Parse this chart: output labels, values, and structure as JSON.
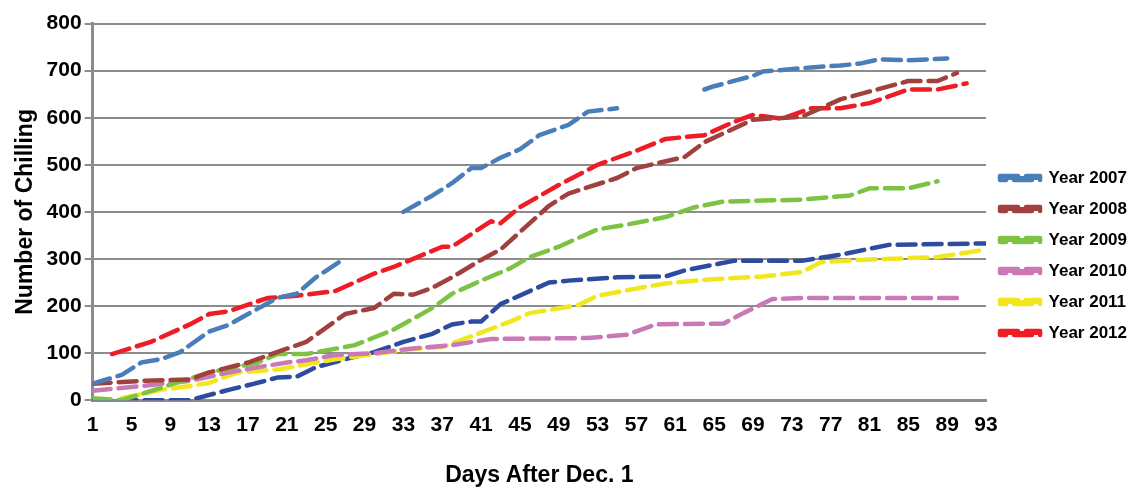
{
  "chart_data": {
    "type": "line",
    "xlabel": "Days After Dec. 1",
    "ylabel": "Number of Chilling",
    "xlim": [
      1,
      93
    ],
    "xticks": [
      1,
      5,
      9,
      13,
      17,
      21,
      25,
      29,
      33,
      37,
      41,
      45,
      49,
      53,
      57,
      61,
      65,
      69,
      73,
      77,
      81,
      85,
      89,
      93
    ],
    "ylim": [
      0,
      800
    ],
    "yticks": [
      0,
      100,
      200,
      300,
      400,
      500,
      600,
      700,
      800
    ],
    "grid": "y",
    "legend": "right",
    "line_style": "dashed",
    "marker": "none",
    "series": [
      {
        "name": "Year 2007",
        "color": "#4a7ebb",
        "x": [
          1,
          4,
          6,
          8,
          10,
          13,
          15,
          17,
          20,
          22,
          24,
          27,
          28,
          33,
          36,
          38,
          40,
          41,
          43,
          45,
          47,
          50,
          52,
          55,
          56,
          64,
          65,
          69,
          70,
          75,
          78,
          80,
          82,
          85,
          89
        ],
        "values": [
          35,
          54,
          80,
          87,
          102,
          146,
          160,
          183,
          217,
          226,
          261,
          302,
          null,
          400,
          435,
          461,
          493,
          493,
          515,
          533,
          563,
          585,
          613,
          620,
          null,
          660,
          667,
          689,
          698,
          707,
          711,
          715,
          724,
          722,
          726
        ]
      },
      {
        "name": "Year 2008",
        "color": "#a0413e",
        "x": [
          1,
          6,
          11,
          13,
          17,
          23,
          27,
          30,
          32,
          34,
          36,
          38,
          41,
          43,
          48,
          50,
          55,
          57,
          62,
          64,
          69,
          74,
          78,
          85,
          88,
          90
        ],
        "values": [
          35,
          41,
          44,
          59,
          80,
          124,
          183,
          196,
          226,
          224,
          239,
          261,
          298,
          320,
          413,
          439,
          472,
          493,
          517,
          548,
          596,
          602,
          639,
          678,
          678,
          695
        ]
      },
      {
        "name": "Year 2009",
        "color": "#7dc243",
        "x": [
          1,
          4,
          13,
          18,
          20,
          23,
          28,
          32,
          36,
          38,
          41,
          44,
          46,
          49,
          53,
          56,
          60,
          63,
          66,
          74,
          79,
          81,
          85,
          88
        ],
        "values": [
          4,
          0,
          59,
          80,
          98,
          98,
          117,
          150,
          196,
          226,
          254,
          280,
          304,
          326,
          363,
          373,
          389,
          410,
          422,
          426,
          435,
          450,
          450,
          465
        ]
      },
      {
        "name": "Year 2010",
        "color": "#c979b5",
        "x": [
          1,
          6,
          11,
          15,
          18,
          21,
          23,
          26,
          30,
          34,
          38,
          42,
          52,
          56,
          59,
          66,
          68,
          71,
          74,
          90
        ],
        "values": [
          20,
          30,
          41,
          59,
          70,
          80,
          85,
          96,
          100,
          110,
          117,
          130,
          132,
          139,
          161,
          163,
          185,
          215,
          217,
          217
        ]
      },
      {
        "name": "Year 2011",
        "color": "#f2e61c",
        "x": [
          4,
          8,
          11,
          13,
          16,
          20,
          26,
          30,
          34,
          37,
          39,
          44,
          46,
          51,
          53,
          58,
          60,
          64,
          70,
          74,
          76,
          80,
          88,
          93
        ],
        "values": [
          4,
          22,
          30,
          37,
          59,
          65,
          87,
          98,
          109,
          113,
          128,
          167,
          185,
          202,
          222,
          241,
          248,
          256,
          263,
          272,
          293,
          298,
          304,
          320
        ]
      },
      {
        "name": "Year 2012",
        "color": "#ee1c25",
        "x": [
          3,
          7,
          11,
          13,
          15,
          19,
          22,
          26,
          30,
          32,
          37,
          38,
          42,
          43,
          45,
          49,
          53,
          57,
          60,
          64,
          67,
          69,
          72,
          75,
          78,
          81,
          85,
          88,
          91
        ],
        "values": [
          98,
          124,
          161,
          183,
          189,
          217,
          222,
          232,
          269,
          283,
          326,
          326,
          380,
          376,
          410,
          457,
          500,
          530,
          555,
          563,
          591,
          606,
          598,
          620,
          620,
          631,
          660,
          660,
          673
        ]
      },
      {
        "color": "#2e4c9f",
        "x": [
          1,
          4,
          11,
          15,
          18,
          20,
          22,
          24,
          27,
          30,
          33,
          36,
          38,
          40,
          41,
          43,
          48,
          50,
          55,
          60,
          62,
          67,
          74,
          78,
          83,
          93
        ],
        "values": [
          0,
          0,
          0,
          22,
          37,
          48,
          50,
          70,
          87,
          102,
          124,
          141,
          161,
          167,
          167,
          204,
          250,
          254,
          261,
          263,
          276,
          296,
          296,
          309,
          330,
          333
        ]
      }
    ]
  }
}
